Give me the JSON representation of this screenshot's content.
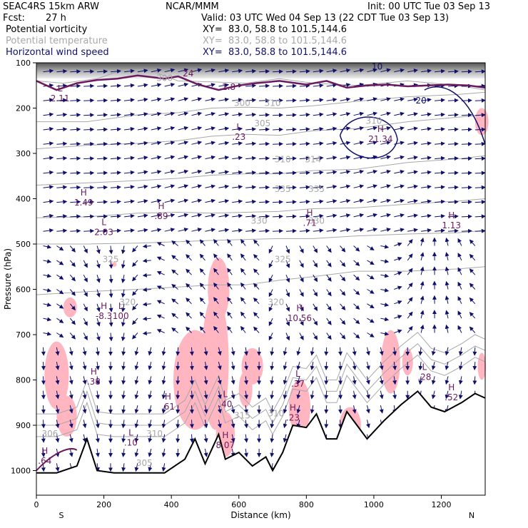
{
  "header": {
    "model": "SEAC4RS 15km ARW",
    "org": "NCAR/MMM",
    "init": "Init: 00 UTC Tue 03 Sep 13",
    "fcst_label": "Fcst:",
    "fcst_value": "27 h",
    "valid": "Valid: 03 UTC Wed 04 Sep 13 (22 CDT Tue 03 Sep 13)",
    "fields": [
      {
        "name": "Potential vorticity",
        "xy": "XY=  83.0, 58.8 to 101.5,144.6",
        "color": "#000000"
      },
      {
        "name": "Potential temperature",
        "xy": "XY=  83.0, 58.8 to 101.5,144.6",
        "color": "#a8a8a8"
      },
      {
        "name": "Horizontal wind speed",
        "xy": "XY=  83.0, 58.8 to 101.5,144.6",
        "color": "#10106e"
      }
    ]
  },
  "colors": {
    "pv_shade": "#ffb6c1",
    "pv_contour": "#6b1a5e",
    "theta": "#a8a8a8",
    "wind": "#10106e",
    "terrain": "#000000"
  },
  "chart_data": {
    "type": "cross-section",
    "xlabel": "Distance (km)",
    "ylabel": "Pressure (hPa)",
    "xlim": [
      0,
      1330
    ],
    "ylim": [
      1050,
      100
    ],
    "x_ticks": [
      0,
      200,
      400,
      600,
      800,
      1000,
      1200
    ],
    "y_ticks": [
      100,
      200,
      300,
      400,
      500,
      600,
      700,
      800,
      900,
      1000
    ],
    "endpoint_labels": {
      "left": "S",
      "right": "N"
    },
    "terrain": [
      [
        0,
        1005
      ],
      [
        60,
        1005
      ],
      [
        120,
        990
      ],
      [
        150,
        930
      ],
      [
        180,
        1000
      ],
      [
        230,
        1005
      ],
      [
        380,
        1005
      ],
      [
        440,
        975
      ],
      [
        470,
        930
      ],
      [
        500,
        985
      ],
      [
        540,
        920
      ],
      [
        560,
        975
      ],
      [
        600,
        960
      ],
      [
        640,
        990
      ],
      [
        680,
        970
      ],
      [
        700,
        1000
      ],
      [
        730,
        960
      ],
      [
        760,
        900
      ],
      [
        800,
        905
      ],
      [
        830,
        875
      ],
      [
        860,
        930
      ],
      [
        890,
        930
      ],
      [
        920,
        870
      ],
      [
        980,
        930
      ],
      [
        1030,
        890
      ],
      [
        1080,
        855
      ],
      [
        1130,
        825
      ],
      [
        1170,
        860
      ],
      [
        1210,
        870
      ],
      [
        1260,
        850
      ],
      [
        1300,
        830
      ],
      [
        1330,
        840
      ]
    ],
    "theta_contours": [
      {
        "label": "300",
        "pts": [
          [
            0,
            140
          ],
          [
            80,
            145
          ],
          [
            180,
            135
          ],
          [
            260,
            115
          ],
          [
            330,
            115
          ],
          [
            420,
            140
          ],
          [
            520,
            142
          ],
          [
            620,
            145
          ],
          [
            720,
            135
          ],
          [
            820,
            145
          ],
          [
            950,
            150
          ],
          [
            1100,
            140
          ],
          [
            1250,
            150
          ],
          [
            1330,
            160
          ]
        ]
      },
      {
        "label": "305",
        "pts": [
          [
            0,
            230
          ],
          [
            150,
            230
          ],
          [
            300,
            215
          ],
          [
            420,
            210
          ],
          [
            520,
            200
          ],
          [
            620,
            198
          ],
          [
            720,
            200
          ],
          [
            820,
            195
          ],
          [
            950,
            185
          ],
          [
            1100,
            175
          ],
          [
            1250,
            170
          ],
          [
            1330,
            165
          ]
        ]
      },
      {
        "label": "310",
        "pts": [
          [
            0,
            290
          ],
          [
            150,
            282
          ],
          [
            300,
            278
          ],
          [
            420,
            272
          ],
          [
            520,
            262
          ],
          [
            620,
            258
          ],
          [
            720,
            260
          ],
          [
            820,
            250
          ],
          [
            950,
            245
          ],
          [
            1100,
            230
          ],
          [
            1250,
            220
          ],
          [
            1330,
            215
          ]
        ]
      },
      {
        "label": "320",
        "pts": [
          [
            0,
            370
          ],
          [
            150,
            365
          ],
          [
            300,
            360
          ],
          [
            420,
            355
          ],
          [
            520,
            348
          ],
          [
            620,
            345
          ],
          [
            720,
            345
          ],
          [
            820,
            338
          ],
          [
            950,
            335
          ],
          [
            1100,
            320
          ],
          [
            1250,
            312
          ],
          [
            1330,
            305
          ]
        ]
      },
      {
        "label": "325",
        "pts": [
          [
            0,
            442
          ],
          [
            150,
            440
          ],
          [
            300,
            432
          ],
          [
            420,
            430
          ],
          [
            520,
            432
          ],
          [
            620,
            430
          ],
          [
            720,
            428
          ],
          [
            820,
            422
          ],
          [
            950,
            420
          ],
          [
            1100,
            412
          ],
          [
            1250,
            405
          ],
          [
            1330,
            400
          ]
        ]
      },
      {
        "label": "330",
        "pts": [
          [
            0,
            500
          ],
          [
            150,
            500
          ],
          [
            300,
            498
          ],
          [
            420,
            495
          ],
          [
            520,
            492
          ],
          [
            620,
            490
          ],
          [
            720,
            488
          ],
          [
            820,
            488
          ],
          [
            950,
            482
          ],
          [
            1100,
            478
          ],
          [
            1250,
            475
          ],
          [
            1330,
            470
          ]
        ]
      },
      {
        "label": "335",
        "pts": [
          [
            0,
            612
          ],
          [
            150,
            605
          ],
          [
            300,
            600
          ],
          [
            420,
            595
          ],
          [
            520,
            590
          ],
          [
            620,
            590
          ],
          [
            720,
            580
          ],
          [
            820,
            572
          ],
          [
            950,
            560
          ],
          [
            1100,
            560
          ],
          [
            1250,
            555
          ],
          [
            1330,
            550
          ]
        ]
      }
    ],
    "pv_labels": [
      {
        "t": "L",
        "v": "2.11",
        "x": 70,
        "p": 185
      },
      {
        "t": "H",
        "v": "1.49",
        "x": 140,
        "p": 415
      },
      {
        "t": "L",
        "v": "2.03",
        "x": 200,
        "p": 480
      },
      {
        "t": "H",
        "v": ".89",
        "x": 370,
        "p": 445
      },
      {
        "t": "L",
        "v": ".23",
        "x": 600,
        "p": 270
      },
      {
        "t": "H",
        "v": "21.34",
        "x": 1020,
        "p": 275
      },
      {
        "t": "H",
        "v": ".71",
        "x": 810,
        "p": 460
      },
      {
        "t": "H",
        "v": "1.13",
        "x": 1230,
        "p": 465
      },
      {
        "t": "H",
        "v": "-8.3",
        "x": 200,
        "p": 665
      },
      {
        "t": "L",
        "v": "100",
        "x": 250,
        "p": 665
      },
      {
        "t": "H",
        "v": "10.56",
        "x": 780,
        "p": 670
      },
      {
        "t": "H",
        "v": ".38",
        "x": 170,
        "p": 810
      },
      {
        "t": "H",
        "v": ".61",
        "x": 390,
        "p": 865
      },
      {
        "t": "L",
        "v": ".40",
        "x": 560,
        "p": 860
      },
      {
        "t": "L",
        "v": ".37",
        "x": 775,
        "p": 815
      },
      {
        "t": "H",
        "v": ".23",
        "x": 760,
        "p": 890
      },
      {
        "t": "L",
        "v": ".28",
        "x": 1150,
        "p": 800
      },
      {
        "t": "H",
        "v": ".52",
        "x": 1230,
        "p": 845
      },
      {
        "t": "L",
        "v": ".10",
        "x": 280,
        "p": 945
      },
      {
        "t": "H",
        "v": "8.07",
        "x": 560,
        "p": 950
      },
      {
        "t": "H",
        "v": ".64",
        "x": 25,
        "p": 985
      },
      {
        "t": "",
        "v": "24",
        "x": 450,
        "p": 130
      },
      {
        "t": "",
        "v": "1.8",
        "x": 570,
        "p": 160
      }
    ],
    "theta_labels": [
      {
        "v": "300",
        "x": 610,
        "p": 195
      },
      {
        "v": "310",
        "x": 700,
        "p": 195
      },
      {
        "v": "305",
        "x": 670,
        "p": 240
      },
      {
        "v": "300",
        "x": 380,
        "p": 140
      },
      {
        "v": "310",
        "x": 1000,
        "p": 235
      },
      {
        "v": "310",
        "x": 730,
        "p": 320
      },
      {
        "v": "314",
        "x": 820,
        "p": 320
      },
      {
        "v": "335",
        "x": 730,
        "p": 385
      },
      {
        "v": "335",
        "x": 830,
        "p": 385
      },
      {
        "v": "330",
        "x": 660,
        "p": 455
      },
      {
        "v": "330",
        "x": 830,
        "p": 455
      },
      {
        "v": "325",
        "x": 220,
        "p": 540
      },
      {
        "v": "325",
        "x": 730,
        "p": 540
      },
      {
        "v": "320",
        "x": 270,
        "p": 635
      },
      {
        "v": "320",
        "x": 710,
        "p": 635
      },
      {
        "v": "310",
        "x": 350,
        "p": 925
      },
      {
        "v": "315",
        "x": 610,
        "p": 885
      },
      {
        "v": "310",
        "x": 710,
        "p": 880
      },
      {
        "v": "306",
        "x": 40,
        "p": 925
      },
      {
        "v": "305",
        "x": 320,
        "p": 990
      }
    ],
    "wind_labels": [
      {
        "v": "20",
        "x": 1140,
        "p": 190
      },
      {
        "v": "10",
        "x": 1010,
        "p": 115
      }
    ]
  }
}
